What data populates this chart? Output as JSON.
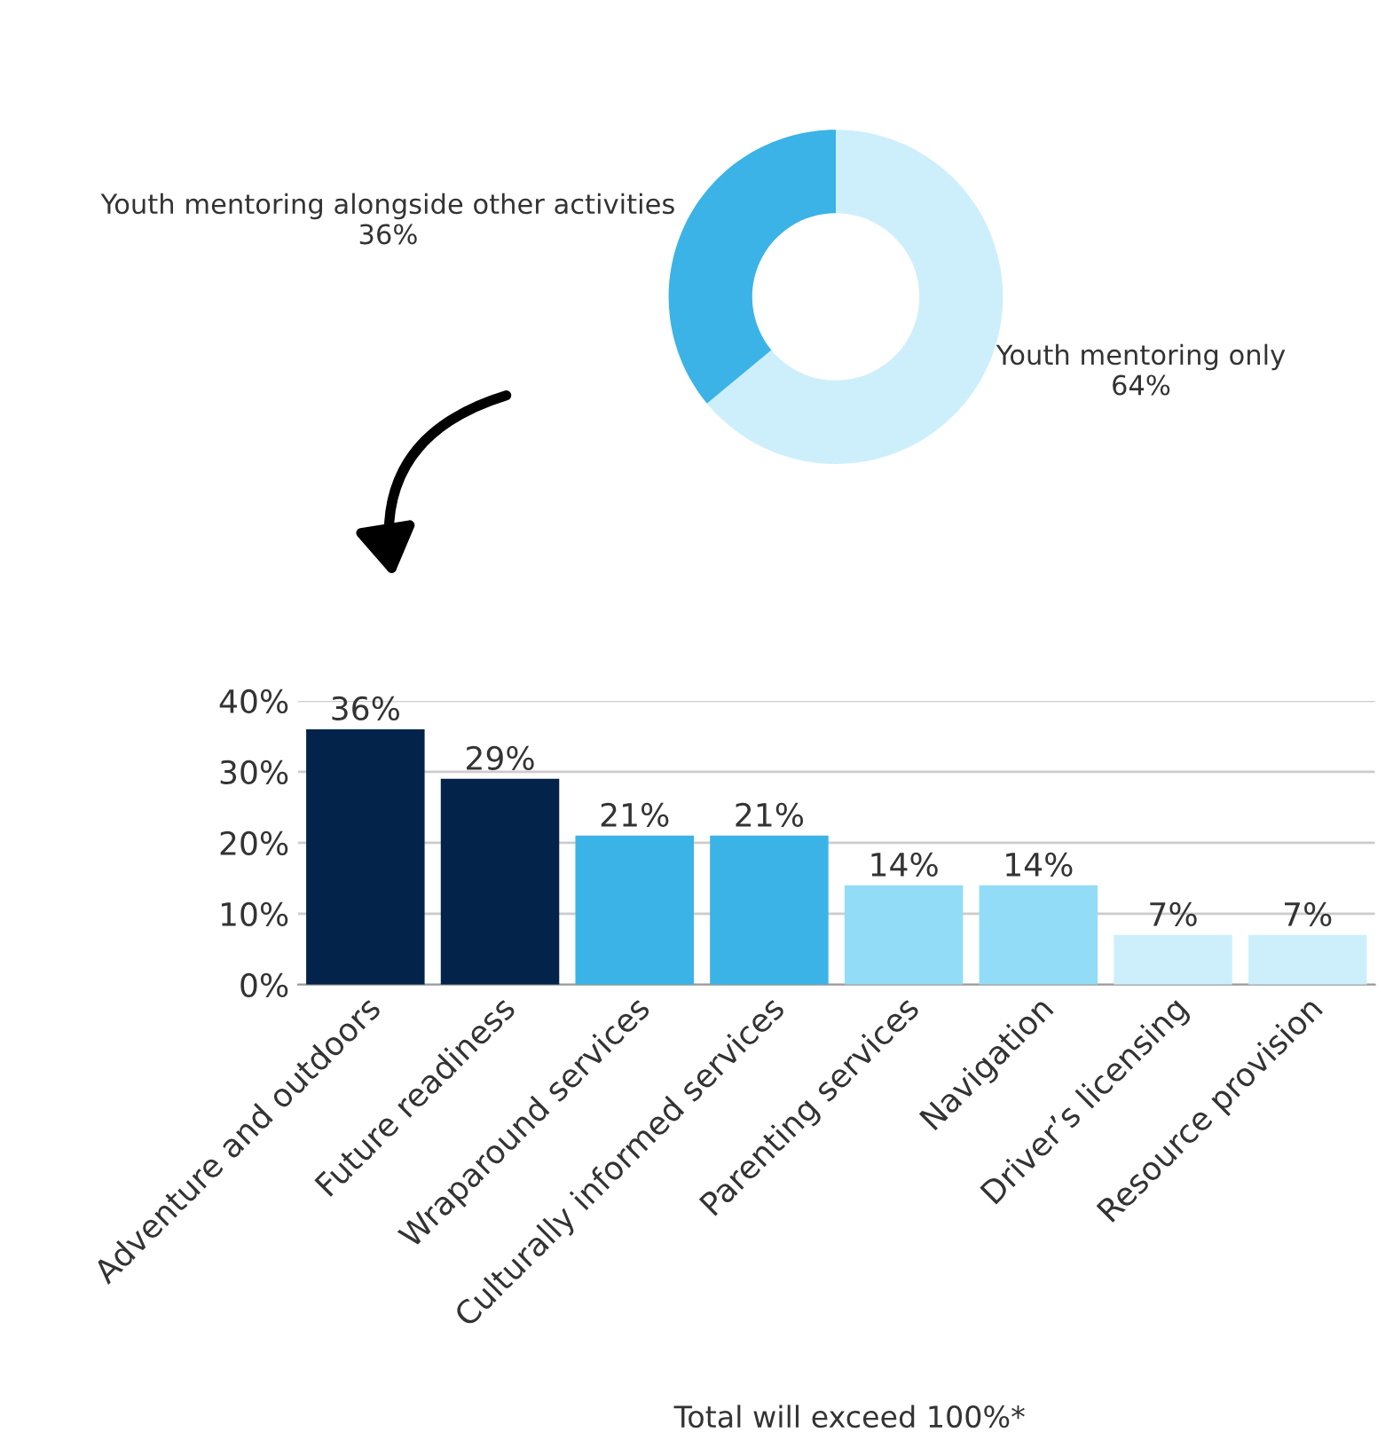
{
  "chart_data": [
    {
      "type": "donut",
      "categories": [
        "Youth mentoring only",
        "Youth mentoring alongside other activities"
      ],
      "values": [
        64,
        36
      ],
      "value_labels": [
        "64%",
        "36%"
      ],
      "colors": [
        "#cdeffc",
        "#3bb3e6"
      ],
      "legend": false
    },
    {
      "type": "bar",
      "categories": [
        "Adventure and outdoors",
        "Future readiness",
        "Wraparound services",
        "Culturally informed services",
        "Parenting services",
        "Navigation",
        "Driver’s licensing",
        "Resource provision"
      ],
      "values": [
        36,
        29,
        21,
        21,
        14,
        14,
        7,
        7
      ],
      "value_labels": [
        "36%",
        "29%",
        "21%",
        "21%",
        "14%",
        "14%",
        "7%",
        "7%"
      ],
      "colors": [
        "#03234a",
        "#03234a",
        "#3bb3e6",
        "#3bb3e6",
        "#93dcf7",
        "#93dcf7",
        "#cdeffc",
        "#cdeffc"
      ],
      "ylim": [
        0,
        40
      ],
      "yticks": [
        {
          "value": 0,
          "label": "0%"
        },
        {
          "value": 10,
          "label": "10%"
        },
        {
          "value": 20,
          "label": "20%"
        },
        {
          "value": 30,
          "label": "30%"
        },
        {
          "value": 40,
          "label": "40%"
        }
      ],
      "grid": "y",
      "legend": false,
      "annotations": [
        "Total will exceed 100%*"
      ]
    }
  ]
}
